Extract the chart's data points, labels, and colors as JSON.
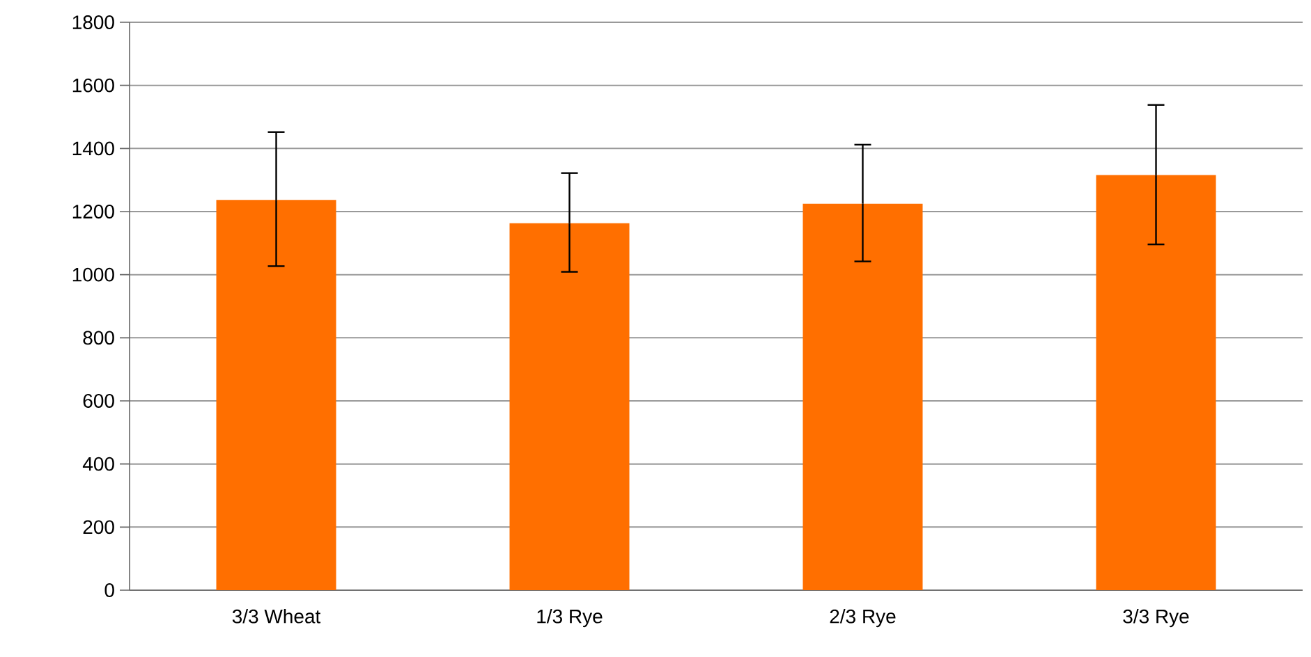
{
  "chart_data": {
    "type": "bar",
    "categories": [
      "3/3 Wheat",
      "1/3 Rye",
      "2/3 Rye",
      "3/3 Rye"
    ],
    "values": [
      1237,
      1163,
      1225,
      1316
    ],
    "errors": [
      [
        1027,
        1452
      ],
      [
        1009,
        1322
      ],
      [
        1042,
        1412
      ],
      [
        1096,
        1538
      ]
    ],
    "color": "#ff6f00",
    "ylim": [
      0,
      1800
    ],
    "yticks": [
      0,
      200,
      400,
      600,
      800,
      1000,
      1200,
      1400,
      1600,
      1800
    ],
    "grid": "y"
  }
}
